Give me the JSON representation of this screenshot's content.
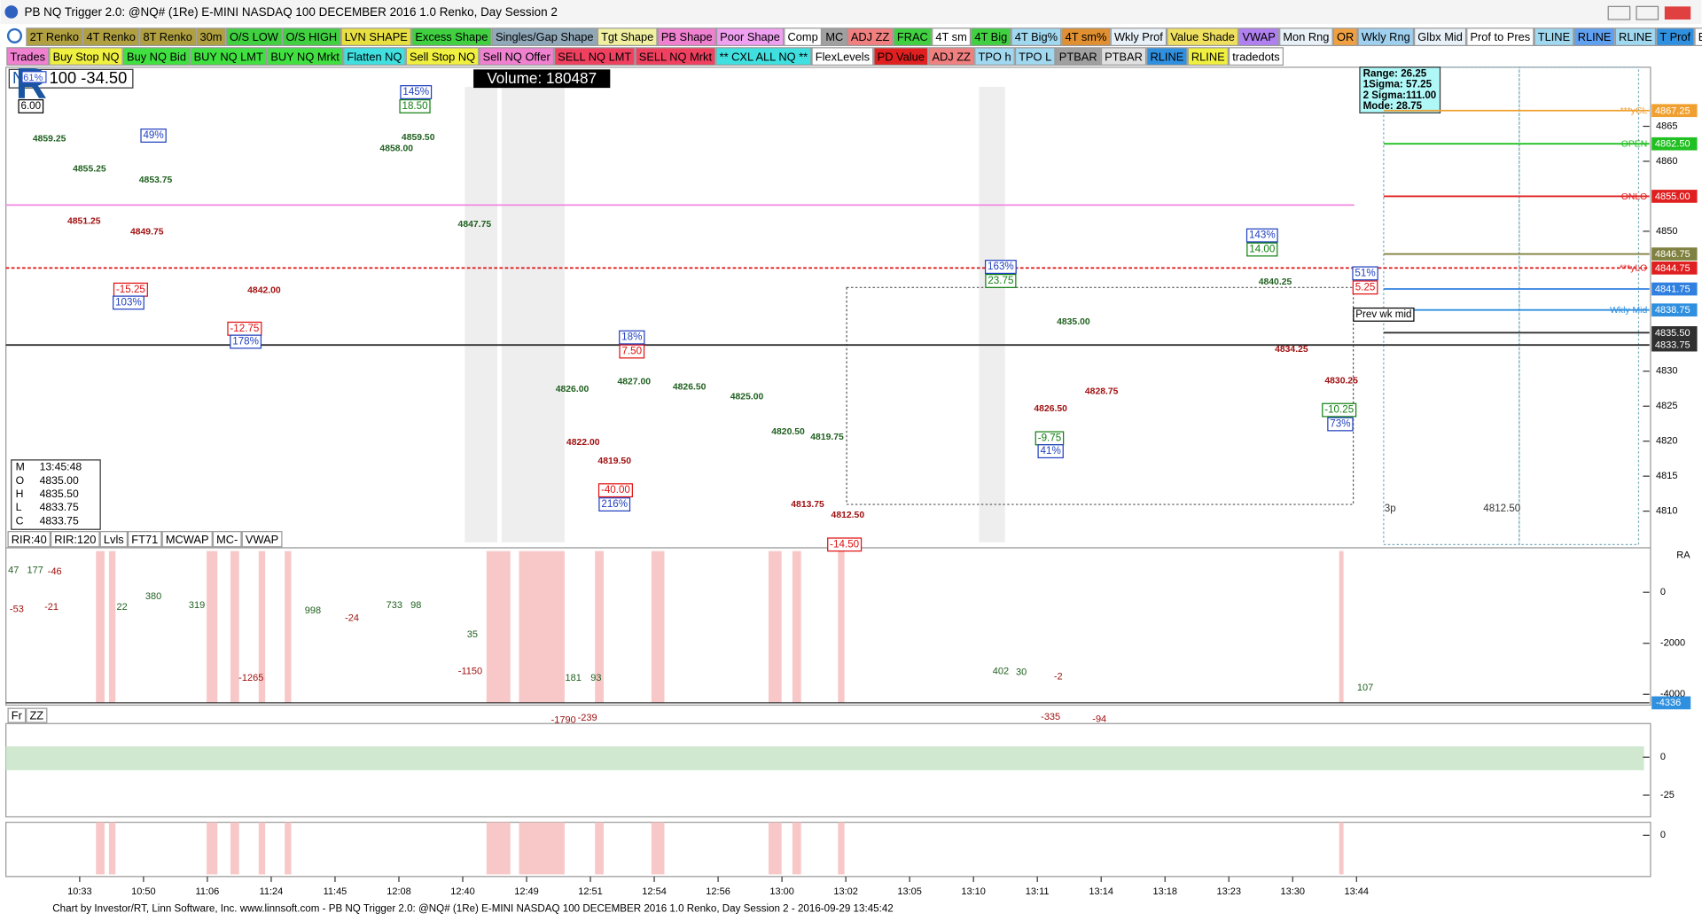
{
  "title_bar": {
    "title": "PB NQ Trigger 2.0: @NQ# (1Re) E-MINI NASDAQ 100 DECEMBER 2016 1.0 Renko, Day Session 2"
  },
  "toolbar": {
    "row1": [
      {
        "label": "2T Renko",
        "color": "#b0a040"
      },
      {
        "label": "4T Renko",
        "color": "#b0a040"
      },
      {
        "label": "8T Renko",
        "color": "#b0a040"
      },
      {
        "label": "30m",
        "color": "#b0a040"
      },
      {
        "label": "O/S LOW",
        "color": "#40d040"
      },
      {
        "label": "O/S HIGH",
        "color": "#40d040"
      },
      {
        "label": "LVN SHAPE",
        "color": "#e8e040"
      },
      {
        "label": "Excess Shape",
        "color": "#40d040"
      },
      {
        "label": "Singles/Gap Shape",
        "color": "#90a8b8"
      },
      {
        "label": "Tgt Shape",
        "color": "#f0f0a0"
      },
      {
        "label": "PB Shape",
        "color": "#f080d0"
      },
      {
        "label": "Poor Shape",
        "color": "#f0a0f0"
      },
      {
        "label": "Comp",
        "color": "#ffffff"
      },
      {
        "label": "MC",
        "color": "#a0a0a0"
      },
      {
        "label": "ADJ ZZ",
        "color": "#f08080"
      },
      {
        "label": "FRAC",
        "color": "#40d040"
      },
      {
        "label": "4T sm",
        "color": "#ffffff"
      },
      {
        "label": "4T Big",
        "color": "#40d040"
      },
      {
        "label": "4T Big%",
        "color": "#a0d8f0"
      },
      {
        "label": "4T sm%",
        "color": "#e09030"
      },
      {
        "label": "Wkly Prof",
        "color": "#e8f0f8"
      },
      {
        "label": "Value Shade",
        "color": "#f0e060"
      },
      {
        "label": "VWAP",
        "color": "#b080f0"
      },
      {
        "label": "Mon Rng",
        "color": "#e8f0f8"
      },
      {
        "label": "OR",
        "color": "#f0a040"
      },
      {
        "label": "Wkly Rng",
        "color": "#a0d0f0"
      },
      {
        "label": "Glbx Mid",
        "color": "#e8f0f8"
      },
      {
        "label": "Prof to Pres",
        "color": "#ffffff"
      },
      {
        "label": "TLINE",
        "color": "#a0d8f0"
      },
      {
        "label": "RLINE",
        "color": "#60a0f0"
      },
      {
        "label": "RLINE",
        "color": "#a0d8f0"
      },
      {
        "label": "T Prof",
        "color": "#3090e0"
      },
      {
        "label": "BAND",
        "color": "#ffffff"
      }
    ],
    "row2": [
      {
        "label": "Trades",
        "color": "#f080d0"
      },
      {
        "label": "Buy Stop NQ",
        "color": "#f0f040"
      },
      {
        "label": "Buy NQ Bid",
        "color": "#40e040"
      },
      {
        "label": "BUY NQ LMT",
        "color": "#40e040"
      },
      {
        "label": "BUY NQ Mrkt",
        "color": "#40e040"
      },
      {
        "label": "Flatten NQ",
        "color": "#40e0e0"
      },
      {
        "label": "Sell Stop NQ",
        "color": "#f0f040"
      },
      {
        "label": "Sell NQ Offer",
        "color": "#f080d0"
      },
      {
        "label": "SELL NQ LMT",
        "color": "#f04060"
      },
      {
        "label": "SELL NQ Mrkt",
        "color": "#f04060"
      },
      {
        "label": "** CXL ALL NQ **",
        "color": "#40e0e0"
      },
      {
        "label": "FlexLevels",
        "color": "#ffffff"
      },
      {
        "label": "PD Value",
        "color": "#e02020"
      },
      {
        "label": "ADJ ZZ",
        "color": "#f08080"
      },
      {
        "label": "TPO h",
        "color": "#a0d8f0"
      },
      {
        "label": "TPO L",
        "color": "#a0d8f0"
      },
      {
        "label": "PTBAR",
        "color": "#a0a0a0"
      },
      {
        "label": "PTBAR",
        "color": "#e0e0e0"
      },
      {
        "label": "RLINE",
        "color": "#3090e0"
      },
      {
        "label": "RLINE",
        "color": "#f0f040"
      },
      {
        "label": "tradedots",
        "color": "#ffffff"
      }
    ]
  },
  "symbol_bar": {
    "prefix": "N",
    "pct": "61%",
    "value": "100 -34.50"
  },
  "volume": "Volume: 180487",
  "ohlc": [
    [
      "M",
      "13:45:48"
    ],
    [
      "O",
      "4835.00"
    ],
    [
      "H",
      "4835.50"
    ],
    [
      "L",
      "4833.75"
    ],
    [
      "C",
      "4833.75"
    ]
  ],
  "stats": [
    "Range: 26.25",
    "1Sigma: 57.25",
    "2 Sigma:111.00",
    "Mode: 28.75"
  ],
  "price_axis": {
    "ticks": [
      4865,
      4860,
      4850,
      4830,
      4825,
      4820,
      4815,
      4810
    ],
    "levels": [
      {
        "value": 4867.25,
        "label": "4867.25",
        "name": "***yCL",
        "color": "#f0a030"
      },
      {
        "value": 4862.5,
        "label": "4862.50",
        "name": "OPEN",
        "color": "#20c020"
      },
      {
        "value": 4855,
        "label": "4855.00",
        "name": "ONLO",
        "color": "#e02020"
      },
      {
        "value": 4846.75,
        "label": "4846.75",
        "name": "",
        "color": "#808040"
      },
      {
        "value": 4844.75,
        "label": "4844.75",
        "name": "***yLO",
        "color": "#e02020"
      },
      {
        "value": 4841.75,
        "label": "4841.75",
        "name": "",
        "color": "#3080e0"
      },
      {
        "value": 4838.75,
        "label": "4838.75",
        "name": "Wkly Mid",
        "color": "#3090e0"
      },
      {
        "value": 4835.5,
        "label": "4835.50",
        "name": "",
        "color": "#303030"
      },
      {
        "value": 4833.75,
        "label": "4833.75",
        "name": "",
        "color": "#303030"
      }
    ]
  },
  "annotations": [
    "4859.25",
    "4855.25",
    "4853.75",
    "4858.00",
    "4859.50",
    "4847.75",
    "4826.00",
    "4827.00",
    "4826.50",
    "4825.00",
    "4820.50",
    "4819.75",
    "4835.00",
    "4840.25",
    "4851.25",
    "4849.75",
    "4842.00",
    "4822.00",
    "4819.50",
    "4813.75",
    "4812.50",
    "4826.50",
    "4828.75",
    "4834.25",
    "4830.25",
    "6.00",
    "18.50",
    "-15.25",
    "-12.75",
    "7.50",
    "-40.00",
    "-14.50",
    "23.75",
    "-9.75",
    "14.00",
    "-10.25",
    "5.25",
    "103%",
    "178%",
    "49%",
    "145%",
    "18%",
    "216%",
    "163%",
    "41%",
    "143%",
    "51%",
    "73%",
    "Prev wk mid",
    "3p",
    "4812.50"
  ],
  "indicator_buttons": [
    "RIR:40",
    "RIR:120",
    "Lvls",
    "FT71",
    "MCWAP",
    "MC-",
    "VWAP"
  ],
  "indicator_labels": [
    "47",
    "177",
    "-46",
    "-53",
    "-21",
    "22",
    "380",
    "319",
    "-1265",
    "998",
    "-24",
    "733",
    "98",
    "35",
    "-1150",
    "181",
    "93",
    "-1790",
    "-239",
    "402",
    "30",
    "-2",
    "107",
    "-335",
    "-94"
  ],
  "panel_ra": {
    "title": "RA",
    "ticks": [
      0,
      -2000,
      -4000
    ],
    "current": {
      "value": -4336,
      "label": "-4336"
    }
  },
  "panel_zz": {
    "buttons": [
      "Fr",
      "ZZ"
    ],
    "ticks": [
      0,
      -25
    ]
  },
  "panel_4": {
    "ticks": [
      0
    ]
  },
  "time_axis": [
    "10:33",
    "10:50",
    "11:06",
    "11:24",
    "11:45",
    "12:08",
    "12:40",
    "12:49",
    "12:51",
    "12:54",
    "12:56",
    "13:00",
    "13:02",
    "13:05",
    "13:10",
    "13:11",
    "13:14",
    "13:18",
    "13:23",
    "13:30",
    "13:44"
  ],
  "footer": "Chart by Investor/RT, Linn Software, Inc. www.linnsoft.com - PB NQ Trigger 2.0: @NQ# (1Re) E-MINI NASDAQ 100 DECEMBER 2016 1.0 Renko, Day Session 2 - 2016-09-29 13:45:42"
}
